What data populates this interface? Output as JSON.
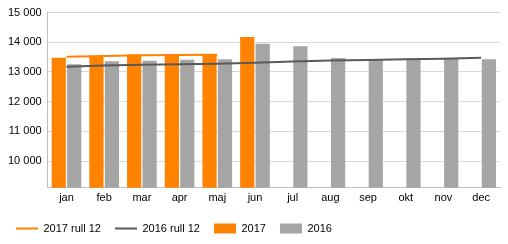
{
  "chart_data": {
    "type": "bar",
    "categories": [
      "jan",
      "feb",
      "mar",
      "apr",
      "maj",
      "jun",
      "jul",
      "aug",
      "sep",
      "okt",
      "nov",
      "dec"
    ],
    "ylim": [
      9100,
      15000
    ],
    "yticks": [
      {
        "value": 10000,
        "label": "10 000"
      },
      {
        "value": 11000,
        "label": "11 000"
      },
      {
        "value": 12000,
        "label": "12 000"
      },
      {
        "value": 13000,
        "label": "13 000"
      },
      {
        "value": 14000,
        "label": "14 000"
      },
      {
        "value": 15000,
        "label": "15 000"
      }
    ],
    "grid": true,
    "legend": "bottom",
    "series": [
      {
        "name": "2017",
        "type": "bar",
        "color": "#ff8200",
        "values": [
          13480,
          13540,
          13590,
          13580,
          13600,
          14180,
          null,
          null,
          null,
          null,
          null,
          null
        ]
      },
      {
        "name": "2016",
        "type": "bar",
        "color": "#a5a5a5",
        "values": [
          13260,
          13360,
          13380,
          13410,
          13430,
          13950,
          13870,
          13470,
          13400,
          13450,
          13450,
          13430
        ]
      },
      {
        "name": "2017 rull 12",
        "type": "line",
        "color": "#ff8200",
        "values": [
          13510,
          13540,
          13560,
          13570,
          13580,
          null,
          null,
          null,
          null,
          null,
          null,
          null
        ]
      },
      {
        "name": "2016 rull 12",
        "type": "line",
        "color": "#595959",
        "values": [
          13180,
          13220,
          13240,
          13260,
          13280,
          13310,
          13350,
          13390,
          13400,
          13430,
          13450,
          13480
        ]
      }
    ]
  }
}
